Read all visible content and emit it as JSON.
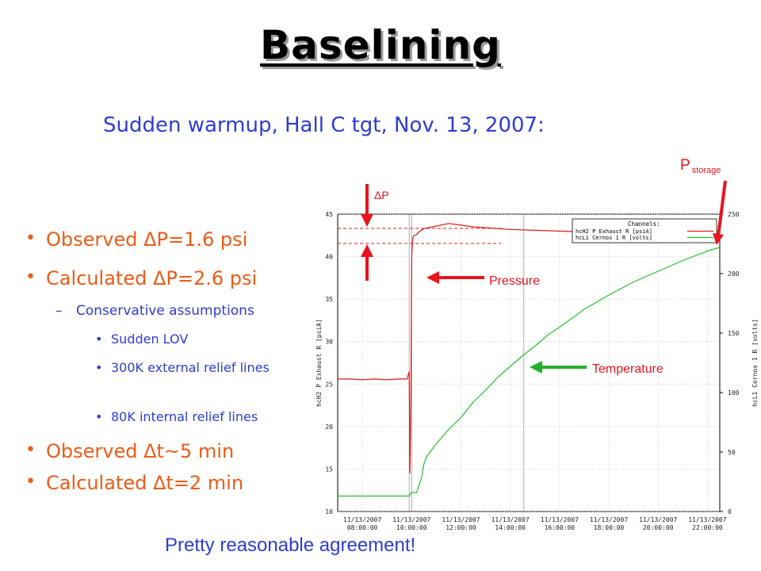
{
  "slide": {
    "title": "Baselining",
    "subtitle": "Sudden warmup, Hall C tgt, Nov. 13, 2007:",
    "bullets": [
      "Observed ΔP=1.6 psi",
      "Calculated ΔP=2.6 psi",
      "Observed Δt~5 min",
      "Calculated Δt=2 min"
    ],
    "sub_bullet": "Conservative assumptions",
    "sub_sub_bullets": [
      "Sudden LOV",
      "300K external relief lines",
      "80K internal relief lines"
    ],
    "conclusion": "Pretty reasonable  agreement!"
  },
  "annotations": {
    "delta_p": "ΔP",
    "p_storage_main": "P",
    "p_storage_sub": "storage",
    "pressure": "Pressure",
    "temperature": "Temperature"
  },
  "colors": {
    "title": "#000000",
    "subtitle": "#2e3bd6",
    "bullet": "#f05a14",
    "annotation_arrow": "#e8141e",
    "pressure_series": "#e01818",
    "temperature_series": "#22c02a"
  },
  "chart_data": {
    "type": "line",
    "legend_title": "Channels:",
    "legend_placement": "top-right",
    "grid": true,
    "left_axis": {
      "label": "hcH2 P Exhaust R [psiA]",
      "range": [
        10,
        45
      ],
      "ticks": [
        "10",
        "15",
        "20",
        "25",
        "30",
        "35",
        "40",
        "45"
      ]
    },
    "right_axis": {
      "label": "hcL1 Cernox 1 R [volts]",
      "range": [
        0,
        250
      ],
      "ticks": [
        "0",
        "50",
        "100",
        "150",
        "200",
        "250"
      ]
    },
    "x_axis": {
      "range_hours": [
        7,
        22.5
      ],
      "ticks": [
        {
          "date": "11/13/2007",
          "time": "08:00:00",
          "hour": 8
        },
        {
          "date": "11/13/2007",
          "time": "10:00:00",
          "hour": 10
        },
        {
          "date": "11/13/2007",
          "time": "12:00:00",
          "hour": 12
        },
        {
          "date": "11/13/2007",
          "time": "14:00:00",
          "hour": 14
        },
        {
          "date": "11/13/2007",
          "time": "16:00:00",
          "hour": 16
        },
        {
          "date": "11/13/2007",
          "time": "18:00:00",
          "hour": 18
        },
        {
          "date": "11/13/2007",
          "time": "20:00:00",
          "hour": 20
        },
        {
          "date": "11/13/2007",
          "time": "22:00:00",
          "hour": 22
        }
      ]
    },
    "series": [
      {
        "name": "hcH2 P Exhaust R [psiA]",
        "axis": "left",
        "x": [
          7.0,
          7.5,
          8.0,
          8.5,
          9.0,
          9.5,
          9.82,
          9.9,
          9.93,
          9.97,
          10.0,
          10.05,
          10.1,
          10.2,
          10.3,
          10.5,
          11.0,
          11.5,
          12.0,
          12.5,
          13.0,
          14.0,
          15.0,
          16.0,
          17.0,
          18.0,
          19.0,
          20.0,
          21.0,
          22.0,
          22.5
        ],
        "values": [
          25.6,
          25.6,
          25.5,
          25.6,
          25.5,
          25.6,
          25.6,
          26.5,
          14.5,
          24.0,
          40.0,
          42.2,
          42.5,
          42.6,
          42.9,
          43.3,
          43.6,
          43.9,
          43.7,
          43.5,
          43.4,
          43.2,
          43.1,
          43.0,
          42.9,
          42.8,
          42.7,
          42.6,
          42.6,
          42.6,
          42.6
        ]
      },
      {
        "name": "hcL1 Cernox 1 R [volts]",
        "axis": "right",
        "x": [
          7.0,
          8.0,
          9.0,
          9.9,
          9.95,
          10.0,
          10.2,
          10.4,
          10.5,
          10.6,
          11.0,
          11.5,
          12.0,
          12.5,
          13.0,
          13.5,
          14.0,
          14.5,
          15.0,
          15.5,
          16.0,
          17.0,
          18.0,
          19.0,
          20.0,
          21.0,
          22.0,
          22.5
        ],
        "values": [
          13,
          13,
          13,
          13,
          15,
          16,
          16,
          28,
          40,
          46,
          57,
          69,
          79,
          92,
          102,
          113,
          122,
          131,
          139,
          148,
          155,
          170,
          182,
          193,
          202,
          211,
          219,
          222
        ]
      }
    ]
  }
}
